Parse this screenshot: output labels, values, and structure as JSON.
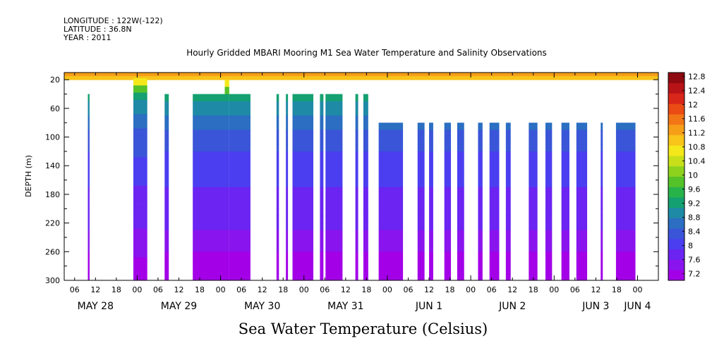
{
  "header": {
    "longitude": "LONGITUDE : 122W(-122)",
    "latitude": "LATITUDE : 36.8N",
    "year": "YEAR : 2011"
  },
  "chart_data": {
    "type": "heatmap",
    "title": "Hourly Gridded MBARI Mooring M1 Sea Water Temperature and Salinity Observations",
    "xlabel": "Sea Water Temperature (Celsius)",
    "ylabel": "DEPTH (m)",
    "x_hours_range": [
      "MAY 28 00",
      "JUN 4 06"
    ],
    "ylim": [
      300,
      10
    ],
    "y_ticks": [
      20,
      60,
      100,
      140,
      180,
      220,
      260,
      300
    ],
    "x_tick_labels": [
      "06",
      "12",
      "18",
      "00",
      "06",
      "12",
      "18",
      "00",
      "06",
      "12",
      "18",
      "00",
      "06",
      "12",
      "18",
      "00",
      "06",
      "12",
      "18",
      "00",
      "06",
      "12",
      "18",
      "00",
      "06",
      "12",
      "18",
      "00"
    ],
    "x_day_labels": [
      {
        "label": "MAY 28",
        "hour": 12
      },
      {
        "label": "MAY 29",
        "hour": 36
      },
      {
        "label": "MAY 30",
        "hour": 60
      },
      {
        "label": "MAY 31",
        "hour": 84
      },
      {
        "label": "JUN  1",
        "hour": 108
      },
      {
        "label": "JUN  2",
        "hour": 132
      },
      {
        "label": "JUN  3",
        "hour": 156
      },
      {
        "label": "JUN  4",
        "hour": 168
      }
    ],
    "colorbar": {
      "levels": [
        7.2,
        7.6,
        8,
        8.4,
        8.8,
        9.2,
        9.6,
        10,
        10.4,
        10.8,
        11.2,
        11.6,
        12,
        12.4,
        12.8
      ],
      "labels": [
        "12.8",
        "12.4",
        "12",
        "11.6",
        "11.2",
        "10.8",
        "10.4",
        "10",
        "9.6",
        "9.2",
        "8.8",
        "8.4",
        "8",
        "7.6",
        "7.2"
      ],
      "colors": [
        "#a300e8",
        "#8a14ee",
        "#6b24f2",
        "#4b3ef0",
        "#3a55d8",
        "#2b6ec2",
        "#1e8aa6",
        "#14a070",
        "#27b34a",
        "#55c22a",
        "#8ed21e",
        "#c8e01a",
        "#f4e81a",
        "#f8c41a",
        "#f79e18",
        "#f27516",
        "#ea4b14",
        "#d8261a",
        "#b81418",
        "#8e0a10"
      ],
      "vmin": 7.2,
      "vmax": 12.8
    },
    "depth_profile": [
      {
        "depth": 10,
        "temp": 11.4
      },
      {
        "depth": 25,
        "temp": 10.6
      },
      {
        "depth": 40,
        "temp": 9.4
      },
      {
        "depth": 60,
        "temp": 9.0
      },
      {
        "depth": 80,
        "temp": 8.7
      },
      {
        "depth": 100,
        "temp": 8.5
      },
      {
        "depth": 140,
        "temp": 8.2
      },
      {
        "depth": 180,
        "temp": 8.0
      },
      {
        "depth": 220,
        "temp": 7.8
      },
      {
        "depth": 260,
        "temp": 7.5
      },
      {
        "depth": 300,
        "temp": 7.3
      }
    ],
    "data_columns": [
      {
        "start": 9.8,
        "end": 10.3,
        "top_depth": 40
      },
      {
        "start": 22.9,
        "end": 26.9,
        "top_depth": 18
      },
      {
        "start": 31.9,
        "end": 33.1,
        "top_depth": 40
      },
      {
        "start": 40.0,
        "end": 49.2,
        "top_depth": 40
      },
      {
        "start": 49.2,
        "end": 50.5,
        "top_depth": 20
      },
      {
        "start": 50.5,
        "end": 56.6,
        "top_depth": 40
      },
      {
        "start": 64.1,
        "end": 64.8,
        "top_depth": 40
      },
      {
        "start": 66.8,
        "end": 67.4,
        "top_depth": 40
      },
      {
        "start": 68.7,
        "end": 74.7,
        "top_depth": 40
      },
      {
        "start": 76.6,
        "end": 77.6,
        "top_depth": 40
      },
      {
        "start": 78.2,
        "end": 83.1,
        "top_depth": 40
      },
      {
        "start": 86.8,
        "end": 87.6,
        "top_depth": 40
      },
      {
        "start": 89.1,
        "end": 90.5,
        "top_depth": 40
      },
      {
        "start": 93.5,
        "end": 100.5,
        "top_depth": 80
      },
      {
        "start": 104.7,
        "end": 106.7,
        "top_depth": 80
      },
      {
        "start": 108.0,
        "end": 109.2,
        "top_depth": 80
      },
      {
        "start": 112.4,
        "end": 114.3,
        "top_depth": 80
      },
      {
        "start": 116.1,
        "end": 118.1,
        "top_depth": 80
      },
      {
        "start": 122.1,
        "end": 123.4,
        "top_depth": 80
      },
      {
        "start": 125.4,
        "end": 128.2,
        "top_depth": 80
      },
      {
        "start": 130.1,
        "end": 131.5,
        "top_depth": 80
      },
      {
        "start": 136.7,
        "end": 139.2,
        "top_depth": 80
      },
      {
        "start": 141.5,
        "end": 143.4,
        "top_depth": 80
      },
      {
        "start": 146.1,
        "end": 148.4,
        "top_depth": 80
      },
      {
        "start": 150.4,
        "end": 153.5,
        "top_depth": 80
      },
      {
        "start": 157.4,
        "end": 158.0,
        "top_depth": 80
      },
      {
        "start": 161.8,
        "end": 167.4,
        "top_depth": 80
      }
    ],
    "grid": false,
    "legend_placement": "right"
  }
}
